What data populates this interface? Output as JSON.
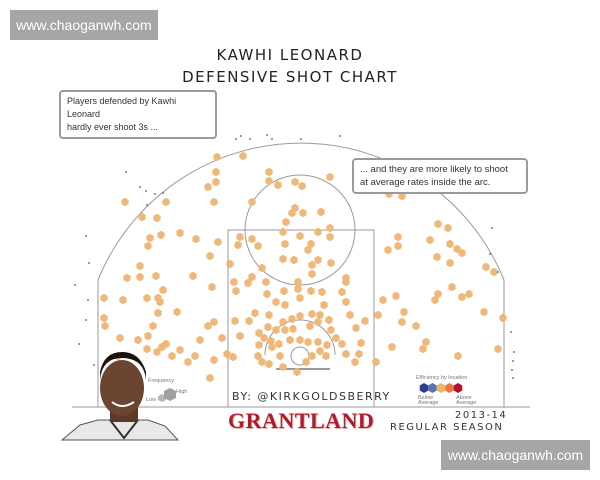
{
  "watermark": {
    "text": "www.chaoganwh.com"
  },
  "header": {
    "title_line1": "KAWHI LEONARD",
    "title_line2": "DEFENSIVE SHOT CHART"
  },
  "annotations": [
    {
      "text_line1": "Players defended by Kawhi Leonard",
      "text_line2": "hardly ever shoot 3s ..."
    },
    {
      "text_line1": "... and they are more likely to shoot",
      "text_line2": "at average rates inside the arc."
    }
  ],
  "legend": {
    "frequency": {
      "title": "Frequency",
      "low": "Low",
      "high": "High"
    },
    "efficiency": {
      "title": "Efficiency by location",
      "below": "Below Average",
      "above": "Above Average",
      "colors": [
        "#2c3e8f",
        "#5a73b8",
        "#f0b468",
        "#e8783e",
        "#b3122f"
      ]
    }
  },
  "footer": {
    "credit": "BY: @KIRKGOLDSBERRY",
    "brand": "GRANTLAND",
    "season_year": "2013-14",
    "season_label": "REGULAR SEASON"
  },
  "chart_data": {
    "type": "scatter",
    "title": "KAWHI LEONARD DEFENSIVE SHOT CHART",
    "description_marks": "hexagonal shot-location markers on a half court",
    "dot_color": "#efb878",
    "court_line_color": "#9a9a9a"
  }
}
